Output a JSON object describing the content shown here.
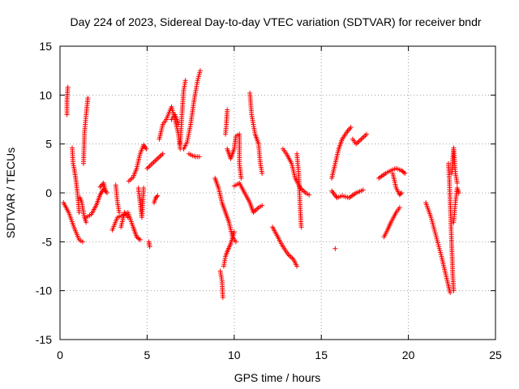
{
  "chart_data": {
    "type": "scatter",
    "title": "Day 224 of 2023, Sidereal Day-to-day VTEC variation (SDTVAR) for receiver bndr",
    "xlabel": "GPS time / hours",
    "ylabel": "SDTVAR / TECUs",
    "xlim": [
      0,
      25
    ],
    "ylim": [
      -15,
      15
    ],
    "xticks": [
      0,
      5,
      10,
      15,
      20,
      25
    ],
    "yticks": [
      -15,
      -10,
      -5,
      0,
      5,
      10,
      15
    ],
    "grid": true,
    "marker": "+",
    "color": "#ff0000",
    "tracks": [
      [
        [
          0.2,
          -1.0
        ],
        [
          0.5,
          -2.0
        ],
        [
          0.8,
          -3.5
        ],
        [
          1.1,
          -4.8
        ],
        [
          1.3,
          -5.0
        ]
      ],
      [
        [
          0.4,
          8.0
        ],
        [
          0.4,
          9.5
        ],
        [
          0.45,
          10.8
        ]
      ],
      [
        [
          0.7,
          4.6
        ],
        [
          0.75,
          3.0
        ],
        [
          0.8,
          2.6
        ],
        [
          0.9,
          1.5
        ],
        [
          1.0,
          0.0
        ],
        [
          1.1,
          -2.0
        ]
      ],
      [
        [
          1.15,
          -0.5
        ],
        [
          1.25,
          -1.0
        ],
        [
          1.4,
          -2.5
        ],
        [
          1.5,
          -3.0
        ]
      ],
      [
        [
          1.35,
          3.0
        ],
        [
          1.4,
          6.0
        ],
        [
          1.5,
          8.0
        ],
        [
          1.6,
          9.7
        ]
      ],
      [
        [
          1.5,
          -2.5
        ],
        [
          1.8,
          -2.2
        ],
        [
          2.1,
          -1.2
        ],
        [
          2.3,
          -0.2
        ],
        [
          2.5,
          0.4
        ],
        [
          2.7,
          0.0
        ]
      ],
      [
        [
          2.3,
          0.6
        ],
        [
          2.5,
          1.0
        ],
        [
          2.6,
          0.3
        ]
      ],
      [
        [
          3.0,
          -3.8
        ],
        [
          3.3,
          -2.5
        ],
        [
          3.6,
          -2.3
        ],
        [
          3.9,
          -2.0
        ],
        [
          4.2,
          -3.5
        ],
        [
          4.4,
          -4.5
        ],
        [
          4.6,
          -4.8
        ]
      ],
      [
        [
          3.2,
          0.8
        ],
        [
          3.3,
          -1.0
        ],
        [
          3.4,
          -2.0
        ]
      ],
      [
        [
          3.5,
          -3.5
        ],
        [
          3.7,
          -2.0
        ],
        [
          3.9,
          -2.5
        ]
      ],
      [
        [
          3.95,
          1.2
        ],
        [
          4.2,
          1.6
        ],
        [
          4.4,
          2.5
        ],
        [
          4.6,
          4.0
        ],
        [
          4.8,
          4.9
        ],
        [
          4.95,
          4.5
        ]
      ],
      [
        [
          4.5,
          0.5
        ],
        [
          4.6,
          -1.0
        ],
        [
          4.7,
          -2.5
        ],
        [
          4.8,
          0.5
        ]
      ],
      [
        [
          5.0,
          2.5
        ],
        [
          5.3,
          3.0
        ],
        [
          5.6,
          3.5
        ],
        [
          5.9,
          4.0
        ]
      ],
      [
        [
          5.1,
          -5.0
        ],
        [
          5.15,
          -5.5
        ]
      ],
      [
        [
          5.4,
          -1.0
        ],
        [
          5.5,
          -0.5
        ],
        [
          5.6,
          -0.3
        ]
      ],
      [
        [
          5.7,
          5.5
        ],
        [
          5.9,
          7.0
        ],
        [
          6.1,
          7.5
        ],
        [
          6.4,
          8.8
        ],
        [
          6.6,
          7.5
        ],
        [
          6.8,
          6.0
        ],
        [
          6.9,
          4.5
        ]
      ],
      [
        [
          6.4,
          7.5
        ],
        [
          6.6,
          8.0
        ],
        [
          6.8,
          7.0
        ]
      ],
      [
        [
          6.9,
          5.0
        ],
        [
          7.0,
          8.0
        ],
        [
          7.1,
          10.5
        ],
        [
          7.2,
          11.5
        ]
      ],
      [
        [
          7.1,
          4.5
        ],
        [
          7.3,
          5.2
        ],
        [
          7.5,
          7.0
        ],
        [
          7.7,
          9.5
        ],
        [
          7.9,
          11.5
        ],
        [
          8.05,
          12.5
        ]
      ],
      [
        [
          7.4,
          4.0
        ],
        [
          7.6,
          3.8
        ],
        [
          7.8,
          3.7
        ],
        [
          8.0,
          3.7
        ]
      ],
      [
        [
          8.9,
          1.5
        ],
        [
          9.1,
          0.5
        ],
        [
          9.3,
          -1.0
        ],
        [
          9.5,
          -2.0
        ],
        [
          9.7,
          -3.0
        ],
        [
          9.9,
          -4.5
        ],
        [
          10.1,
          -5.0
        ]
      ],
      [
        [
          9.2,
          -8.0
        ],
        [
          9.3,
          -9.0
        ],
        [
          9.35,
          -10.7
        ]
      ],
      [
        [
          9.4,
          -7.5
        ],
        [
          9.5,
          -6.5
        ],
        [
          9.6,
          -6.0
        ],
        [
          9.8,
          -5.2
        ],
        [
          10.0,
          -4.0
        ]
      ],
      [
        [
          9.5,
          6.0
        ],
        [
          9.55,
          7.0
        ],
        [
          9.6,
          8.5
        ]
      ],
      [
        [
          9.6,
          4.5
        ],
        [
          9.8,
          3.5
        ],
        [
          10.0,
          4.5
        ],
        [
          10.1,
          5.8
        ],
        [
          10.3,
          6.0
        ],
        [
          10.3,
          3.0
        ],
        [
          10.4,
          1.5
        ]
      ],
      [
        [
          10.0,
          0.7
        ],
        [
          10.3,
          1.0
        ],
        [
          10.6,
          0.0
        ],
        [
          10.9,
          -1.0
        ],
        [
          11.1,
          -2.0
        ],
        [
          11.4,
          -1.5
        ],
        [
          11.6,
          -1.3
        ]
      ],
      [
        [
          10.9,
          10.2
        ],
        [
          11.0,
          8.0
        ],
        [
          11.2,
          6.0
        ],
        [
          11.4,
          5.0
        ],
        [
          11.5,
          3.0
        ],
        [
          11.6,
          2.0
        ]
      ],
      [
        [
          12.2,
          -3.5
        ],
        [
          12.5,
          -4.5
        ],
        [
          12.8,
          -5.5
        ],
        [
          13.1,
          -6.3
        ],
        [
          13.4,
          -6.8
        ],
        [
          13.6,
          -7.5
        ]
      ],
      [
        [
          12.8,
          4.5
        ],
        [
          13.0,
          4.0
        ],
        [
          13.3,
          3.0
        ],
        [
          13.5,
          1.5
        ],
        [
          13.8,
          0.5
        ],
        [
          14.1,
          0.0
        ],
        [
          14.3,
          -0.2
        ]
      ],
      [
        [
          13.6,
          4.0
        ],
        [
          13.7,
          2.0
        ],
        [
          13.75,
          0.0
        ],
        [
          13.8,
          -2.0
        ],
        [
          13.85,
          -3.5
        ]
      ],
      [
        [
          15.6,
          1.5
        ],
        [
          15.8,
          3.0
        ],
        [
          16.0,
          4.5
        ],
        [
          16.2,
          5.5
        ],
        [
          16.5,
          6.3
        ],
        [
          16.7,
          6.7
        ]
      ],
      [
        [
          15.6,
          0.2
        ],
        [
          15.9,
          -0.5
        ],
        [
          16.2,
          -0.3
        ],
        [
          16.6,
          -0.5
        ],
        [
          17.0,
          0.0
        ],
        [
          17.4,
          0.3
        ]
      ],
      [
        [
          15.8,
          -5.7
        ]
      ],
      [
        [
          16.8,
          5.5
        ],
        [
          17.0,
          5.0
        ],
        [
          17.3,
          5.5
        ],
        [
          17.6,
          6.0
        ]
      ],
      [
        [
          18.3,
          1.5
        ],
        [
          18.7,
          2.0
        ],
        [
          19.0,
          2.3
        ],
        [
          19.3,
          2.5
        ],
        [
          19.6,
          2.3
        ],
        [
          19.8,
          2.0
        ]
      ],
      [
        [
          18.6,
          -4.5
        ],
        [
          18.8,
          -3.8
        ],
        [
          19.0,
          -3.0
        ],
        [
          19.3,
          -2.0
        ],
        [
          19.5,
          -1.5
        ]
      ],
      [
        [
          19.1,
          2.0
        ],
        [
          19.3,
          0.5
        ],
        [
          19.5,
          -0.2
        ],
        [
          19.6,
          0.0
        ]
      ],
      [
        [
          21.0,
          -1.0
        ],
        [
          21.3,
          -2.5
        ],
        [
          21.6,
          -4.5
        ],
        [
          21.9,
          -6.5
        ],
        [
          22.1,
          -8.0
        ],
        [
          22.3,
          -9.5
        ],
        [
          22.4,
          -10.2
        ]
      ],
      [
        [
          22.3,
          3.0
        ],
        [
          22.35,
          1.5
        ],
        [
          22.4,
          -1.0
        ],
        [
          22.45,
          -3.5
        ],
        [
          22.5,
          -6.0
        ],
        [
          22.55,
          -8.5
        ],
        [
          22.6,
          -10.0
        ]
      ],
      [
        [
          22.5,
          2.0
        ],
        [
          22.55,
          3.5
        ],
        [
          22.6,
          4.6
        ],
        [
          22.7,
          2.0
        ],
        [
          22.8,
          1.0
        ]
      ],
      [
        [
          22.6,
          -3.0
        ],
        [
          22.7,
          -1.0
        ],
        [
          22.8,
          0.5
        ],
        [
          22.9,
          0.0
        ]
      ]
    ]
  }
}
